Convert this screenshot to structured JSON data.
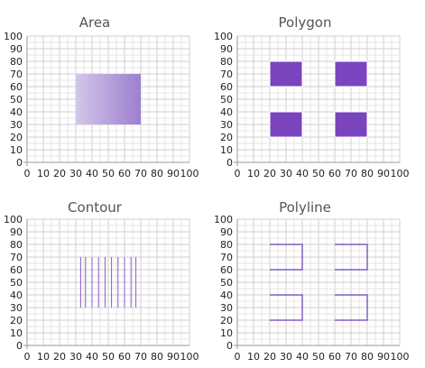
{
  "chart_data": [
    {
      "type": "area",
      "title": "Area",
      "xlim": [
        0,
        100
      ],
      "ylim": [
        0,
        100
      ],
      "xticks": [
        "0",
        "10",
        "20",
        "30",
        "40",
        "50",
        "60",
        "70",
        "80",
        "90",
        "100"
      ],
      "yticks": [
        "0",
        "10",
        "20",
        "30",
        "40",
        "50",
        "60",
        "70",
        "80",
        "90",
        "100"
      ],
      "grid": true,
      "regions": [
        {
          "x": [
            30,
            70
          ],
          "y": [
            30,
            70
          ],
          "gradient": [
            "#d3c6ea",
            "#9d7fcf"
          ]
        }
      ]
    },
    {
      "type": "polygon",
      "title": "Polygon",
      "xlim": [
        0,
        100
      ],
      "ylim": [
        0,
        100
      ],
      "xticks": [
        "0",
        "10",
        "20",
        "30",
        "40",
        "50",
        "60",
        "70",
        "80",
        "90",
        "100"
      ],
      "yticks": [
        "0",
        "10",
        "20",
        "30",
        "40",
        "50",
        "60",
        "70",
        "80",
        "90",
        "100"
      ],
      "grid": true,
      "fill": "#7a44bf",
      "stroke": "#ffffff",
      "rects": [
        {
          "x": [
            20,
            40
          ],
          "y": [
            60,
            80
          ]
        },
        {
          "x": [
            60,
            80
          ],
          "y": [
            60,
            80
          ]
        },
        {
          "x": [
            20,
            40
          ],
          "y": [
            20,
            40
          ]
        },
        {
          "x": [
            60,
            80
          ],
          "y": [
            20,
            40
          ]
        }
      ]
    },
    {
      "type": "contour",
      "title": "Contour",
      "xlim": [
        0,
        100
      ],
      "ylim": [
        0,
        100
      ],
      "xticks": [
        "0",
        "10",
        "20",
        "30",
        "40",
        "50",
        "60",
        "70",
        "80",
        "90",
        "100"
      ],
      "yticks": [
        "0",
        "10",
        "20",
        "30",
        "40",
        "50",
        "60",
        "70",
        "80",
        "90",
        "100"
      ],
      "grid": true,
      "stroke": "#8b5cc6",
      "y_range": [
        30,
        70
      ],
      "x_lines": [
        33,
        36,
        40,
        44,
        48,
        52,
        56,
        60,
        64,
        67
      ]
    },
    {
      "type": "polyline",
      "title": "Polyline",
      "xlim": [
        0,
        100
      ],
      "ylim": [
        0,
        100
      ],
      "xticks": [
        "0",
        "10",
        "20",
        "30",
        "40",
        "50",
        "60",
        "70",
        "80",
        "90",
        "100"
      ],
      "yticks": [
        "0",
        "10",
        "20",
        "30",
        "40",
        "50",
        "60",
        "70",
        "80",
        "90",
        "100"
      ],
      "grid": true,
      "stroke": "#6a3bb5",
      "paths": [
        [
          [
            20,
            80
          ],
          [
            40,
            80
          ],
          [
            40,
            60
          ],
          [
            20,
            60
          ]
        ],
        [
          [
            60,
            80
          ],
          [
            80,
            80
          ],
          [
            80,
            60
          ],
          [
            60,
            60
          ]
        ],
        [
          [
            20,
            40
          ],
          [
            40,
            40
          ],
          [
            40,
            20
          ],
          [
            20,
            20
          ]
        ],
        [
          [
            60,
            40
          ],
          [
            80,
            40
          ],
          [
            80,
            20
          ],
          [
            60,
            20
          ]
        ]
      ]
    }
  ]
}
